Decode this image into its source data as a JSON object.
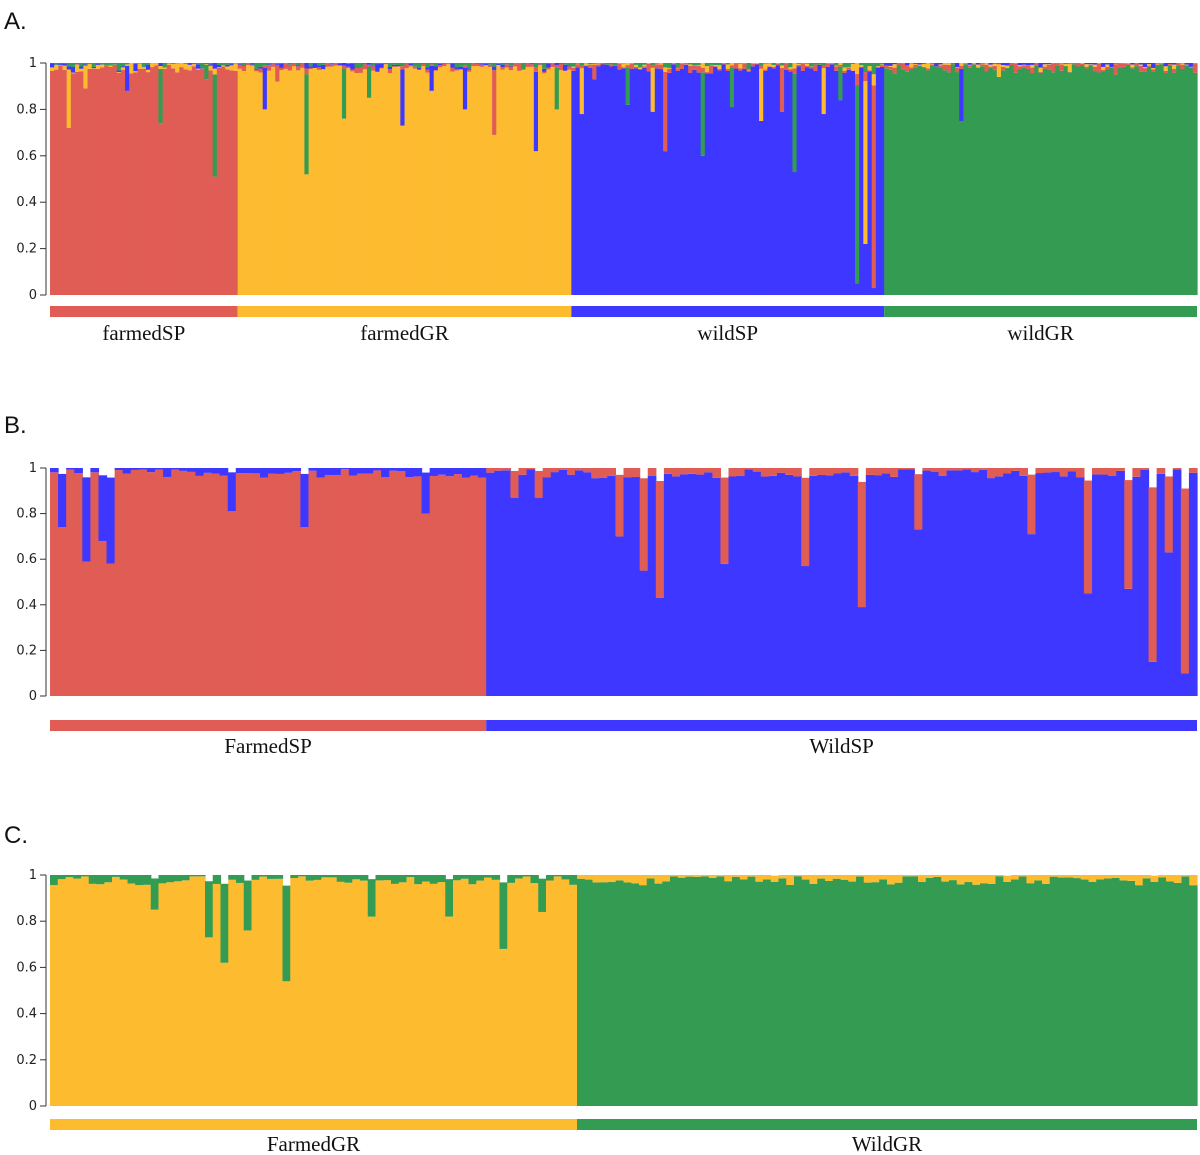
{
  "colors": {
    "farmedSP": "#E05D55",
    "farmedGR": "#FDBB30",
    "wildSP": "#3D37FF",
    "wildGR": "#339C52"
  },
  "chart_data": [
    {
      "panel": "A.",
      "type": "stacked-bar",
      "ylim": [
        0,
        1
      ],
      "yticks": [
        "0",
        "0.2",
        "0.4",
        "0.6",
        "0.8",
        "1"
      ],
      "clusters": [
        "farmedSP",
        "farmedGR",
        "wildSP",
        "wildGR"
      ],
      "groups": [
        {
          "label": "farmedSP",
          "n": 45,
          "main": "farmedSP",
          "dips": [
            [
              4,
              0.72
            ],
            [
              8,
              0.89
            ],
            [
              18,
              0.88
            ],
            [
              26,
              0.74
            ],
            [
              37,
              0.93
            ],
            [
              39,
              0.51
            ]
          ]
        },
        {
          "label": "farmedGR",
          "n": 80,
          "main": "farmedGR",
          "dips": [
            [
              6,
              0.8
            ],
            [
              9,
              0.92
            ],
            [
              16,
              0.52
            ],
            [
              25,
              0.76
            ],
            [
              31,
              0.85
            ],
            [
              39,
              0.73
            ],
            [
              46,
              0.88
            ],
            [
              54,
              0.8
            ],
            [
              61,
              0.69
            ],
            [
              71,
              0.62
            ],
            [
              76,
              0.8
            ]
          ]
        },
        {
          "label": "wildSP",
          "n": 75,
          "main": "wildSP",
          "dips": [
            [
              2,
              0.78
            ],
            [
              5,
              0.93
            ],
            [
              13,
              0.82
            ],
            [
              19,
              0.79
            ],
            [
              22,
              0.62
            ],
            [
              31,
              0.6
            ],
            [
              38,
              0.81
            ],
            [
              45,
              0.75
            ],
            [
              50,
              0.79
            ],
            [
              53,
              0.53
            ],
            [
              60,
              0.78
            ],
            [
              64,
              0.84
            ],
            [
              68,
              0.05
            ],
            [
              70,
              0.22
            ],
            [
              72,
              0.03
            ]
          ]
        },
        {
          "label": "wildGR",
          "n": 75,
          "main": "wildGR",
          "dips": [
            [
              18,
              0.75
            ],
            [
              27,
              0.94
            ],
            [
              40,
              0.96
            ],
            [
              55,
              0.95
            ]
          ]
        }
      ]
    },
    {
      "panel": "B.",
      "type": "stacked-bar",
      "ylim": [
        0,
        1
      ],
      "yticks": [
        "0",
        "0.2",
        "0.4",
        "0.6",
        "0.8",
        "1"
      ],
      "clusters": [
        "farmedSP",
        "wildSP"
      ],
      "groups": [
        {
          "label": "FarmedSP",
          "n": 54,
          "main": "farmedSP",
          "dips": [
            [
              1,
              0.74
            ],
            [
              4,
              0.59
            ],
            [
              6,
              0.68
            ],
            [
              7,
              0.58
            ],
            [
              22,
              0.81
            ],
            [
              31,
              0.74
            ],
            [
              46,
              0.8
            ]
          ]
        },
        {
          "label": "WildSP",
          "n": 88,
          "main": "wildSP",
          "dips": [
            [
              3,
              0.87
            ],
            [
              6,
              0.87
            ],
            [
              16,
              0.7
            ],
            [
              19,
              0.55
            ],
            [
              21,
              0.43
            ],
            [
              29,
              0.58
            ],
            [
              39,
              0.57
            ],
            [
              46,
              0.39
            ],
            [
              53,
              0.73
            ],
            [
              67,
              0.71
            ],
            [
              74,
              0.45
            ],
            [
              79,
              0.47
            ],
            [
              82,
              0.15
            ],
            [
              84,
              0.63
            ],
            [
              86,
              0.1
            ]
          ]
        }
      ]
    },
    {
      "panel": "C.",
      "type": "stacked-bar",
      "ylim": [
        0,
        1
      ],
      "yticks": [
        "0",
        "0.2",
        "0.4",
        "0.6",
        "0.8",
        "1"
      ],
      "clusters": [
        "farmedGR",
        "wildGR"
      ],
      "groups": [
        {
          "label": "FarmedGR",
          "n": 68,
          "main": "farmedGR",
          "dips": [
            [
              13,
              0.85
            ],
            [
              20,
              0.73
            ],
            [
              22,
              0.62
            ],
            [
              25,
              0.76
            ],
            [
              30,
              0.54
            ],
            [
              41,
              0.82
            ],
            [
              51,
              0.82
            ],
            [
              58,
              0.68
            ],
            [
              63,
              0.84
            ]
          ]
        },
        {
          "label": "WildGR",
          "n": 80,
          "main": "wildGR",
          "dips": [
            [
              25,
              0.97
            ],
            [
              55,
              0.97
            ],
            [
              74,
              0.97
            ]
          ]
        }
      ]
    }
  ]
}
